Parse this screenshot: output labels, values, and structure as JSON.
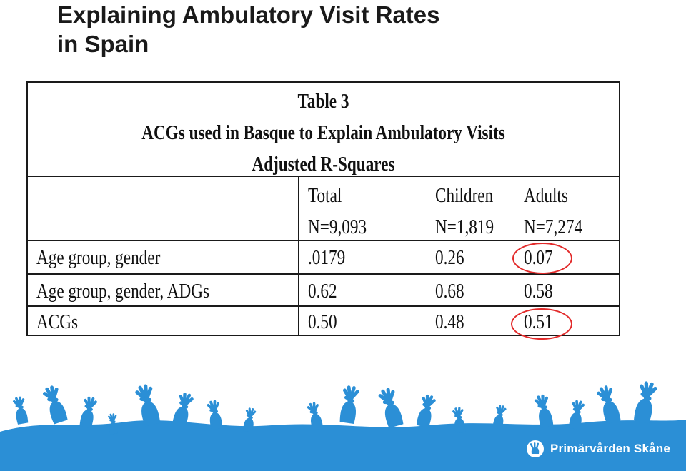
{
  "slide": {
    "title_line1": "Explaining Ambulatory Visit Rates",
    "title_line2": "in Spain"
  },
  "table": {
    "caption_lines": [
      "Table 3",
      "ACGs used in Basque to Explain Ambulatory Visits",
      "Adjusted R-Squares"
    ],
    "columns": [
      {
        "label": "Total",
        "n": "N=9,093"
      },
      {
        "label": "Children",
        "n": "N=1,819"
      },
      {
        "label": "Adults",
        "n": "N=7,274"
      }
    ],
    "rows": [
      {
        "label": "Age group, gender",
        "values": [
          ".0179",
          "0.26",
          "0.07"
        ],
        "adult_circled": true
      },
      {
        "label": "Age group, gender, ADGs",
        "values": [
          "0.62",
          "0.68",
          "0.58"
        ],
        "adult_circled": false
      },
      {
        "label": "ACGs",
        "values": [
          "0.50",
          "0.48",
          "0.51"
        ],
        "adult_circled": true
      }
    ]
  },
  "footer": {
    "logo_text": "Primärvården Skåne",
    "logo_icon": "hand-logo-icon",
    "decor_color": "#2b8fd6",
    "circle_color": "#e22a2a"
  }
}
